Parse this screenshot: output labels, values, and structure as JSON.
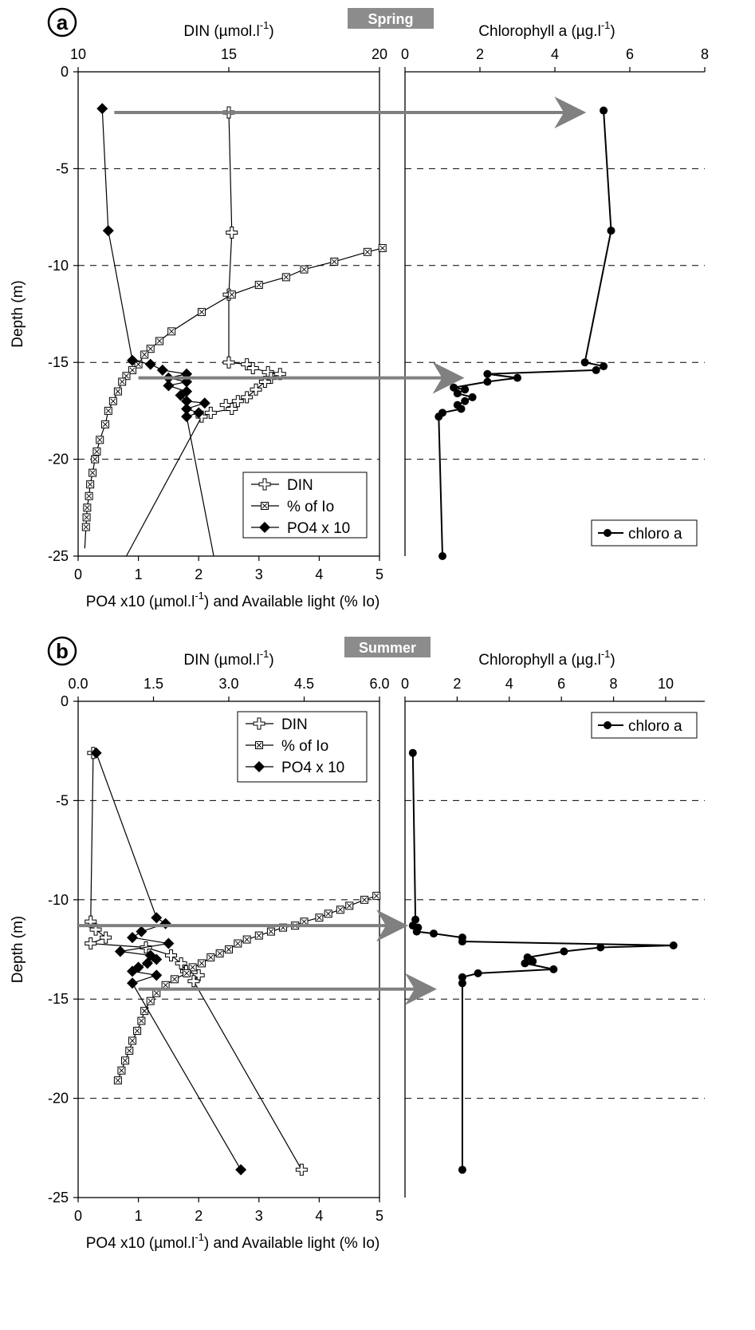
{
  "panels": [
    {
      "letter": "a",
      "season": "Spring",
      "left": {
        "top_axis": {
          "label": "DIN (µmol.l",
          "sup": "-1",
          "close": ")",
          "range": [
            10,
            20
          ],
          "ticks": [
            10,
            15,
            20
          ]
        },
        "bottom_axis": {
          "label": "PO4 x10 (µmol.l",
          "sup": "-1",
          "close": ") and Available light (% Io)",
          "range": [
            0,
            5
          ],
          "ticks": [
            0,
            1,
            2,
            3,
            4,
            5
          ]
        },
        "y_axis": {
          "label": "Depth (m)",
          "range": [
            -25,
            0
          ],
          "ticks": [
            0,
            -5,
            -10,
            -15,
            -20,
            -25
          ]
        },
        "legend": [
          "DIN",
          "% of Io",
          "PO4 x 10"
        ],
        "legend_position": "bottom-right"
      },
      "right": {
        "top_axis": {
          "label": "Chlorophyll a (µg.l",
          "sup": "-1",
          "close": ")",
          "range": [
            0,
            8
          ],
          "ticks": [
            0,
            2,
            4,
            6,
            8
          ]
        },
        "legend": [
          "chloro a"
        ],
        "legend_position": "bottom-right",
        "gridlines_y": [
          -5,
          -10,
          -15,
          -20
        ]
      }
    },
    {
      "letter": "b",
      "season": "Summer",
      "left": {
        "top_axis": {
          "label": "DIN (µmol.l",
          "sup": "-1",
          "close": ")",
          "range": [
            0,
            6
          ],
          "ticks": [
            "0.0",
            "1.5",
            "3.0",
            "4.5",
            "6.0"
          ]
        },
        "bottom_axis": {
          "label": "PO4 x10 (µmol.l",
          "sup": "-1",
          "close": ") and Available light (% Io)",
          "range": [
            0,
            5
          ],
          "ticks": [
            0,
            1,
            2,
            3,
            4,
            5
          ]
        },
        "y_axis": {
          "label": "Depth (m)",
          "range": [
            -25,
            0
          ],
          "ticks": [
            0,
            -5,
            -10,
            -15,
            -20,
            -25
          ]
        },
        "legend": [
          "DIN",
          "% of Io",
          "PO4 x 10"
        ],
        "legend_position": "top-right"
      },
      "right": {
        "top_axis": {
          "label": "Chlorophyll a (µg.l",
          "sup": "-1",
          "close": ")",
          "range": [
            0,
            11.5
          ],
          "ticks": [
            0,
            2,
            4,
            6,
            8,
            10
          ]
        },
        "legend": [
          "chloro a"
        ],
        "legend_position": "top-right",
        "gridlines_y": [
          -5,
          -10,
          -15,
          -20
        ]
      }
    }
  ],
  "chart_data": [
    {
      "type": "line",
      "panel": "a",
      "series": [
        {
          "name": "DIN",
          "axis": "top-left",
          "points": [
            [
              15.0,
              -2.1
            ],
            [
              15.1,
              -8.3
            ],
            [
              15.0,
              -11.5
            ],
            [
              15.0,
              -15.0
            ],
            [
              15.6,
              -15.1
            ],
            [
              15.8,
              -15.3
            ],
            [
              16.3,
              -15.5
            ],
            [
              16.7,
              -15.6
            ],
            [
              16.4,
              -15.8
            ],
            [
              16.2,
              -16.0
            ],
            [
              15.9,
              -16.4
            ],
            [
              15.6,
              -16.8
            ],
            [
              15.3,
              -17.0
            ],
            [
              14.9,
              -17.2
            ],
            [
              15.1,
              -17.4
            ],
            [
              14.4,
              -17.6
            ],
            [
              14.1,
              -17.8
            ],
            [
              11.6,
              -25.0
            ]
          ]
        },
        {
          "name": "% of Io",
          "axis": "bottom",
          "points": [
            [
              5.05,
              -9.1
            ],
            [
              4.8,
              -9.3
            ],
            [
              4.25,
              -9.8
            ],
            [
              3.75,
              -10.2
            ],
            [
              3.45,
              -10.6
            ],
            [
              3.0,
              -11.0
            ],
            [
              2.55,
              -11.5
            ],
            [
              2.05,
              -12.4
            ],
            [
              1.55,
              -13.4
            ],
            [
              1.35,
              -13.9
            ],
            [
              1.2,
              -14.3
            ],
            [
              1.1,
              -14.6
            ],
            [
              1.0,
              -15.1
            ],
            [
              0.9,
              -15.4
            ],
            [
              0.8,
              -15.7
            ],
            [
              0.73,
              -16.0
            ],
            [
              0.66,
              -16.5
            ],
            [
              0.58,
              -17.0
            ],
            [
              0.5,
              -17.5
            ],
            [
              0.45,
              -18.2
            ],
            [
              0.36,
              -19.0
            ],
            [
              0.31,
              -19.6
            ],
            [
              0.28,
              -20.0
            ],
            [
              0.24,
              -20.7
            ],
            [
              0.2,
              -21.3
            ],
            [
              0.18,
              -21.9
            ],
            [
              0.15,
              -22.5
            ],
            [
              0.14,
              -23.0
            ],
            [
              0.13,
              -23.5
            ],
            [
              0.11,
              -24.6
            ]
          ]
        },
        {
          "name": "PO4 x 10",
          "axis": "bottom",
          "points": [
            [
              0.4,
              -1.9
            ],
            [
              0.5,
              -8.2
            ],
            [
              0.9,
              -14.9
            ],
            [
              1.2,
              -15.1
            ],
            [
              1.4,
              -15.4
            ],
            [
              1.8,
              -15.6
            ],
            [
              1.5,
              -15.8
            ],
            [
              1.8,
              -16.0
            ],
            [
              1.5,
              -16.2
            ],
            [
              1.8,
              -16.5
            ],
            [
              1.7,
              -16.7
            ],
            [
              1.8,
              -17.0
            ],
            [
              2.1,
              -17.1
            ],
            [
              1.8,
              -17.4
            ],
            [
              2.0,
              -17.6
            ],
            [
              1.8,
              -17.8
            ],
            [
              2.25,
              -25.0
            ]
          ]
        },
        {
          "name": "chloro a",
          "axis": "top-right",
          "points": [
            [
              5.3,
              -2.0
            ],
            [
              5.5,
              -8.2
            ],
            [
              4.8,
              -15.0
            ],
            [
              5.3,
              -15.2
            ],
            [
              5.1,
              -15.4
            ],
            [
              2.2,
              -15.6
            ],
            [
              3.0,
              -15.8
            ],
            [
              2.2,
              -16.0
            ],
            [
              1.3,
              -16.3
            ],
            [
              1.6,
              -16.4
            ],
            [
              1.4,
              -16.6
            ],
            [
              1.8,
              -16.8
            ],
            [
              1.6,
              -17.0
            ],
            [
              1.4,
              -17.2
            ],
            [
              1.5,
              -17.4
            ],
            [
              1.0,
              -17.6
            ],
            [
              0.9,
              -17.8
            ],
            [
              1.0,
              -25.0
            ]
          ]
        }
      ],
      "arrows": [
        {
          "from": [
            0.6,
            -2.1
          ],
          "to": [
            4.75,
            -2.1
          ]
        },
        {
          "from": [
            1.0,
            -15.8
          ],
          "to": [
            1.5,
            -15.8
          ]
        }
      ]
    },
    {
      "type": "line",
      "panel": "b",
      "series": [
        {
          "name": "DIN",
          "axis": "top-left",
          "points": [
            [
              0.3,
              -2.6
            ],
            [
              0.25,
              -11.1
            ],
            [
              0.35,
              -11.5
            ],
            [
              0.55,
              -11.9
            ],
            [
              0.25,
              -12.2
            ],
            [
              1.35,
              -12.4
            ],
            [
              1.85,
              -12.8
            ],
            [
              2.05,
              -13.2
            ],
            [
              2.15,
              -13.6
            ],
            [
              2.4,
              -13.8
            ],
            [
              2.3,
              -14.1
            ],
            [
              4.45,
              -23.6
            ]
          ]
        },
        {
          "name": "% of Io",
          "axis": "bottom",
          "points": [
            [
              4.95,
              -9.8
            ],
            [
              4.75,
              -10.0
            ],
            [
              4.5,
              -10.3
            ],
            [
              4.35,
              -10.5
            ],
            [
              4.15,
              -10.7
            ],
            [
              4.0,
              -10.9
            ],
            [
              3.75,
              -11.1
            ],
            [
              3.6,
              -11.3
            ],
            [
              3.4,
              -11.4
            ],
            [
              3.2,
              -11.6
            ],
            [
              3.0,
              -11.8
            ],
            [
              2.8,
              -12.0
            ],
            [
              2.65,
              -12.2
            ],
            [
              2.5,
              -12.5
            ],
            [
              2.35,
              -12.7
            ],
            [
              2.2,
              -12.9
            ],
            [
              2.05,
              -13.2
            ],
            [
              1.9,
              -13.4
            ],
            [
              1.8,
              -13.7
            ],
            [
              1.6,
              -14.0
            ],
            [
              1.45,
              -14.3
            ],
            [
              1.3,
              -14.7
            ],
            [
              1.2,
              -15.1
            ],
            [
              1.1,
              -15.6
            ],
            [
              1.05,
              -16.1
            ],
            [
              0.98,
              -16.6
            ],
            [
              0.9,
              -17.1
            ],
            [
              0.85,
              -17.6
            ],
            [
              0.78,
              -18.1
            ],
            [
              0.72,
              -18.6
            ],
            [
              0.66,
              -19.1
            ]
          ]
        },
        {
          "name": "PO4 x 10",
          "axis": "bottom",
          "points": [
            [
              0.3,
              -2.6
            ],
            [
              1.3,
              -10.9
            ],
            [
              1.45,
              -11.2
            ],
            [
              1.05,
              -11.6
            ],
            [
              0.9,
              -11.9
            ],
            [
              1.5,
              -12.2
            ],
            [
              0.7,
              -12.6
            ],
            [
              1.2,
              -12.8
            ],
            [
              1.3,
              -13.0
            ],
            [
              1.15,
              -13.2
            ],
            [
              1.0,
              -13.4
            ],
            [
              0.9,
              -13.6
            ],
            [
              1.3,
              -13.8
            ],
            [
              0.9,
              -14.2
            ],
            [
              2.7,
              -23.6
            ]
          ]
        },
        {
          "name": "chloro a",
          "axis": "top-right",
          "points": [
            [
              0.3,
              -2.6
            ],
            [
              0.4,
              -11.0
            ],
            [
              0.3,
              -11.3
            ],
            [
              0.5,
              -11.4
            ],
            [
              0.45,
              -11.6
            ],
            [
              1.1,
              -11.7
            ],
            [
              2.2,
              -11.9
            ],
            [
              2.2,
              -12.1
            ],
            [
              10.3,
              -12.3
            ],
            [
              7.5,
              -12.4
            ],
            [
              6.1,
              -12.6
            ],
            [
              4.7,
              -12.9
            ],
            [
              4.9,
              -13.1
            ],
            [
              4.6,
              -13.2
            ],
            [
              5.7,
              -13.5
            ],
            [
              2.8,
              -13.7
            ],
            [
              2.2,
              -13.9
            ],
            [
              2.2,
              -14.2
            ],
            [
              2.2,
              -23.6
            ]
          ]
        }
      ],
      "arrows": [
        {
          "from": [
            0.0,
            -11.3
          ],
          "to": [
            0.0,
            -11.3
          ]
        },
        {
          "from": [
            1.0,
            -14.5
          ],
          "to": [
            1.1,
            -14.5
          ]
        }
      ]
    }
  ]
}
